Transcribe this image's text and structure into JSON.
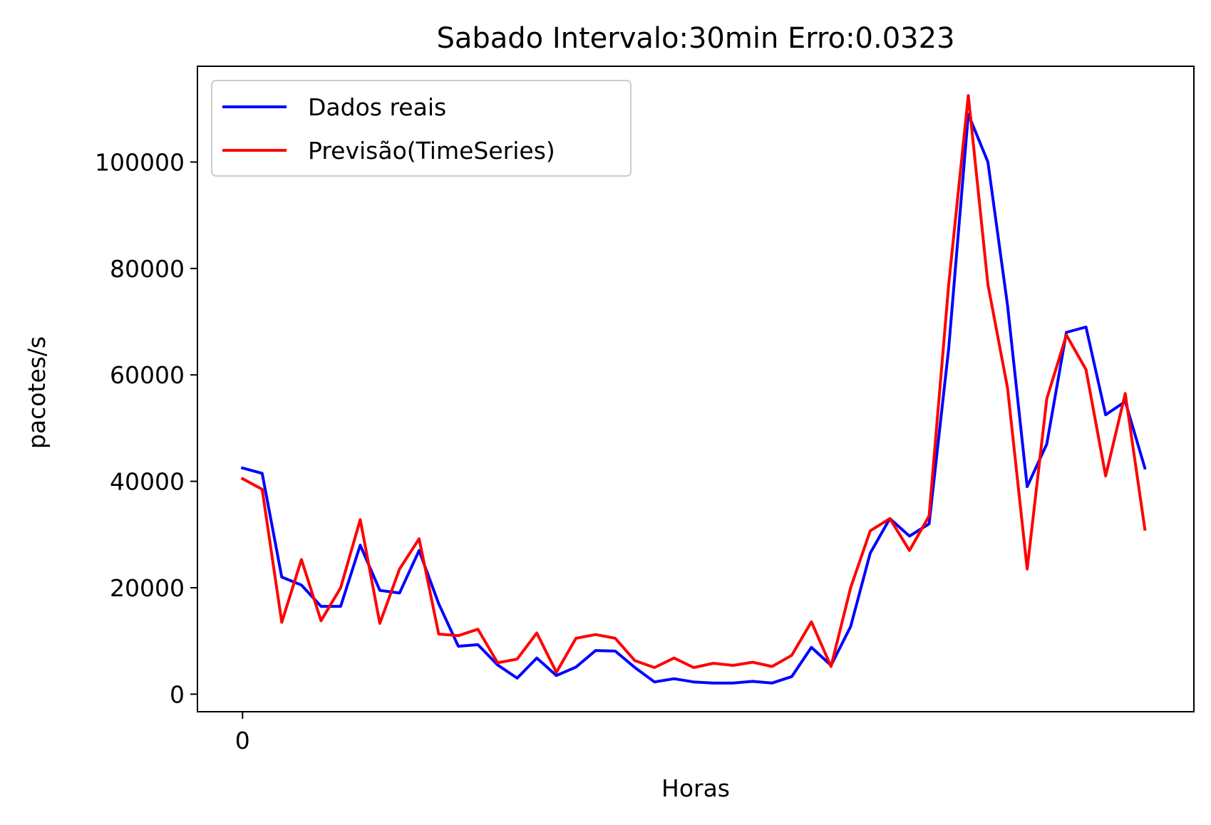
{
  "chart_data": {
    "type": "line",
    "title": "Sabado Intervalo:30min Erro:0.0323",
    "xlabel": "Horas",
    "ylabel": "pacotes/s",
    "xlim": [
      -2.3,
      48.5
    ],
    "ylim": [
      -3300,
      118000
    ],
    "x_ticks": [
      0
    ],
    "x_tick_labels": [
      "0"
    ],
    "y_ticks": [
      0,
      20000,
      40000,
      60000,
      80000,
      100000
    ],
    "y_tick_labels": [
      "0",
      "20000",
      "40000",
      "60000",
      "80000",
      "100000"
    ],
    "grid": false,
    "legend_position": "upper-left",
    "x": [
      0,
      1,
      2,
      3,
      4,
      5,
      6,
      7,
      8,
      9,
      10,
      11,
      12,
      13,
      14,
      15,
      16,
      17,
      18,
      19,
      20,
      21,
      22,
      23,
      24,
      25,
      26,
      27,
      28,
      29,
      30,
      31,
      32,
      33,
      34,
      35,
      36,
      37,
      38,
      39,
      40,
      41,
      42,
      43,
      44,
      45,
      46
    ],
    "series": [
      {
        "name": "Dados reais",
        "color": "#0000ff",
        "values": [
          42500,
          41500,
          22000,
          20500,
          16500,
          16500,
          28000,
          19500,
          19000,
          27000,
          17000,
          9000,
          9300,
          5500,
          3000,
          6800,
          3500,
          5100,
          8200,
          8100,
          5000,
          2300,
          2900,
          2300,
          2100,
          2100,
          2400,
          2100,
          3300,
          8800,
          5400,
          12700,
          26500,
          33000,
          29700,
          32000,
          65000,
          109000,
          100000,
          73000,
          39000,
          47000,
          68000,
          69000,
          52500,
          55000,
          42500
        ]
      },
      {
        "name": "Previsão(TimeSeries)",
        "color": "#ff0000",
        "values": [
          40500,
          38500,
          13500,
          25300,
          13800,
          20000,
          32800,
          13300,
          23500,
          29200,
          11300,
          11000,
          12200,
          5900,
          6600,
          11500,
          4100,
          10500,
          11200,
          10500,
          6300,
          5000,
          6800,
          5000,
          5800,
          5400,
          6000,
          5200,
          7300,
          13600,
          5200,
          20000,
          30700,
          33000,
          27000,
          33500,
          77000,
          112500,
          77000,
          57500,
          23500,
          55500,
          67500,
          61000,
          41000,
          56500,
          31000
        ]
      }
    ]
  }
}
